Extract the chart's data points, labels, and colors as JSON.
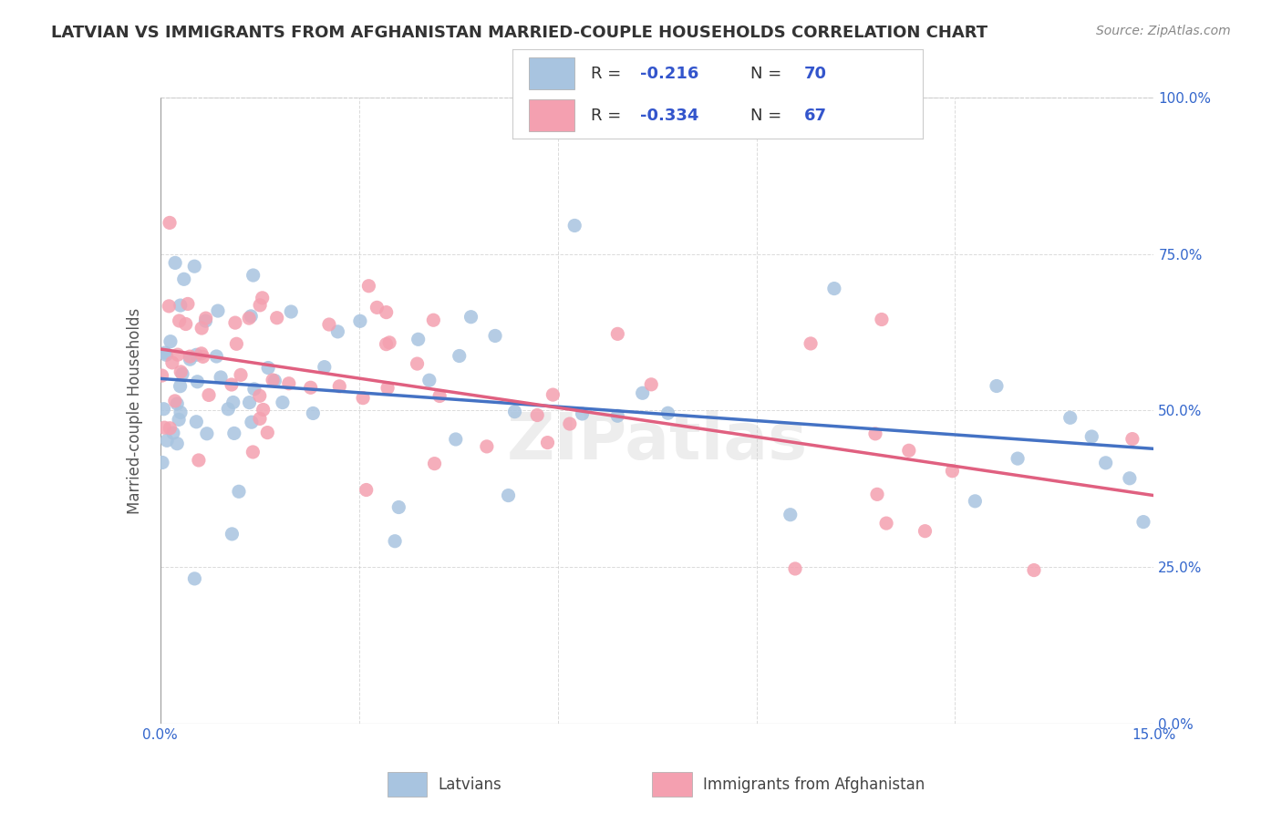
{
  "title": "LATVIAN VS IMMIGRANTS FROM AFGHANISTAN MARRIED-COUPLE HOUSEHOLDS CORRELATION CHART",
  "source": "Source: ZipAtlas.com",
  "ylabel": "Married-couple Households",
  "r_latvian": -0.216,
  "n_latvian": 70,
  "r_afghan": -0.334,
  "n_afghan": 67,
  "color_latvian": "#a8c4e0",
  "color_afghan": "#f4a0b0",
  "line_color_latvian": "#4472c4",
  "line_color_afghan": "#e06080",
  "watermark": "ZIPatlas",
  "background_color": "#ffffff",
  "blue_text": "#3355cc",
  "dark_text": "#333333",
  "legend_label_1": "Latvians",
  "legend_label_2": "Immigrants from Afghanistan"
}
